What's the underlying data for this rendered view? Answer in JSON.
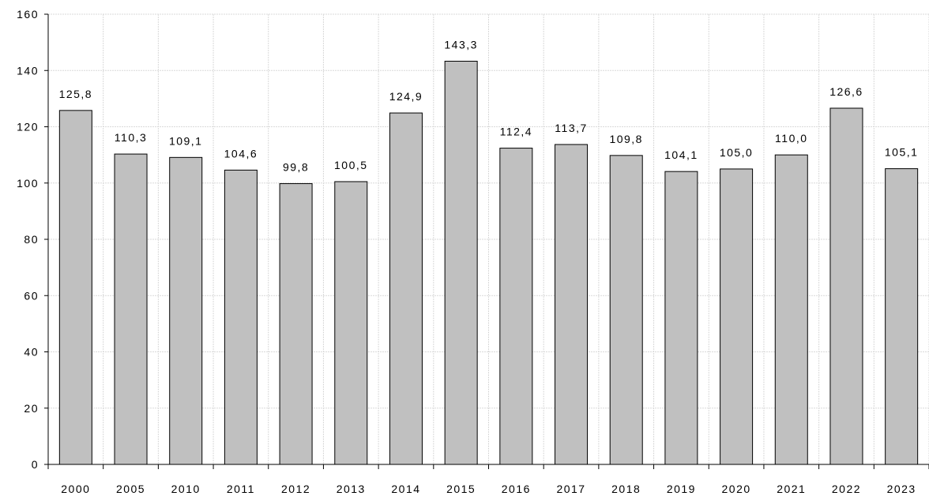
{
  "chart_data": {
    "type": "bar",
    "categories": [
      "2000",
      "2005",
      "2010",
      "2011",
      "2012",
      "2013",
      "2014",
      "2015",
      "2016",
      "2017",
      "2018",
      "2019",
      "2020",
      "2021",
      "2022",
      "2023"
    ],
    "values": [
      125.8,
      110.3,
      109.1,
      104.6,
      99.8,
      100.5,
      124.9,
      143.3,
      112.4,
      113.7,
      109.8,
      104.1,
      105.0,
      110.0,
      126.6,
      105.1
    ],
    "value_labels": [
      "125,8",
      "110,3",
      "109,1",
      "104,6",
      "99,8",
      "100,5",
      "124,9",
      "143,3",
      "112,4",
      "113,7",
      "109,8",
      "104,1",
      "105,0",
      "110,0",
      "126,6",
      "105,1"
    ],
    "title": "",
    "xlabel": "",
    "ylabel": "",
    "ylim": [
      0,
      160
    ],
    "yticks": [
      0,
      20,
      40,
      60,
      80,
      100,
      120,
      140,
      160
    ],
    "grid": true,
    "bar_color": "#c0c0c0",
    "bar_edge_color": "#000000",
    "grid_color": "#d9d9d9"
  }
}
